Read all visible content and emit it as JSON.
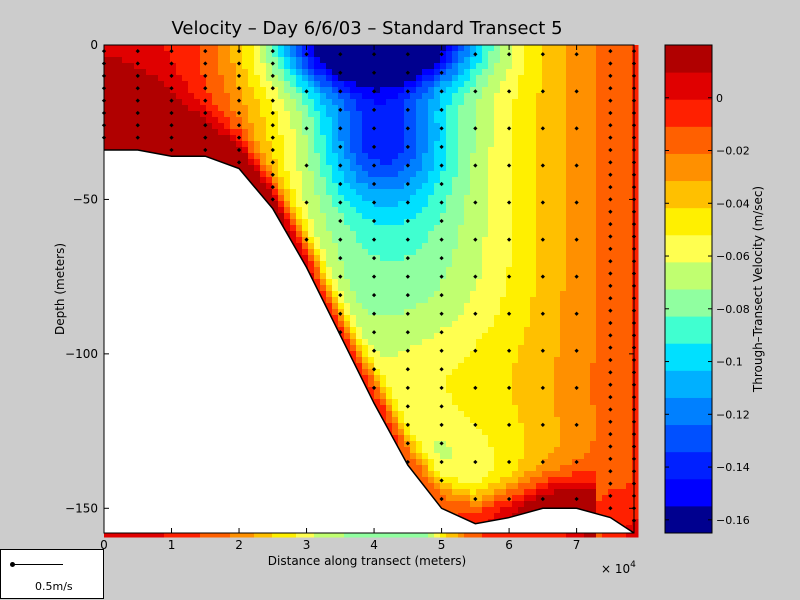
{
  "chart_data": {
    "type": "heatmap",
    "title": "Velocity – Day 6/6/03 – Standard Transect 5",
    "xlabel": "Distance along transect (meters)",
    "ylabel": "Depth (meters)",
    "x_multiplier": "× 10",
    "x_multiplier_exp": "4",
    "xlim": [
      0,
      7.85
    ],
    "ylim": [
      -158,
      0
    ],
    "xticks": [
      0,
      1,
      2,
      3,
      4,
      5,
      6,
      7
    ],
    "yticks": [
      0,
      -50,
      -100,
      -150
    ],
    "colorbar": {
      "label": "Through–Transect Velocity (m/sec)",
      "ticks": [
        "0",
        "−0.02",
        "−0.04",
        "−0.06",
        "−0.08",
        "−0.1",
        "−0.12",
        "−0.14",
        "−0.16"
      ],
      "tick_values": [
        0,
        -0.02,
        -0.04,
        -0.06,
        -0.08,
        -0.1,
        -0.12,
        -0.14,
        -0.16
      ],
      "range": [
        -0.165,
        0.02
      ],
      "levels": 18,
      "colors": [
        "#00008f",
        "#0000ff",
        "#0020ff",
        "#0050ff",
        "#0080ff",
        "#00b0ff",
        "#00e0ff",
        "#40ffd0",
        "#90ffa0",
        "#c0ff70",
        "#ffff50",
        "#fff000",
        "#ffc000",
        "#ff9000",
        "#ff6000",
        "#ff2000",
        "#e00000",
        "#b00000"
      ]
    },
    "bottom_profile": {
      "x": [
        0,
        0.5,
        1,
        1.5,
        2,
        2.5,
        3,
        3.5,
        4,
        4.5,
        5,
        5.5,
        6,
        6.5,
        7,
        7.5,
        7.85
      ],
      "depth": [
        -34,
        -34,
        -36,
        -36,
        -40,
        -53,
        -72,
        -94,
        -116,
        -136,
        -150,
        -155,
        -153,
        -150,
        -150,
        -153,
        -158
      ]
    },
    "station_x": [
      0,
      0.5,
      1,
      1.5,
      2,
      2.5,
      3,
      3.5,
      4,
      4.5,
      5,
      5.5,
      6,
      6.5,
      7,
      7.5,
      7.85
    ],
    "scale_legend": "0.5m/s"
  }
}
